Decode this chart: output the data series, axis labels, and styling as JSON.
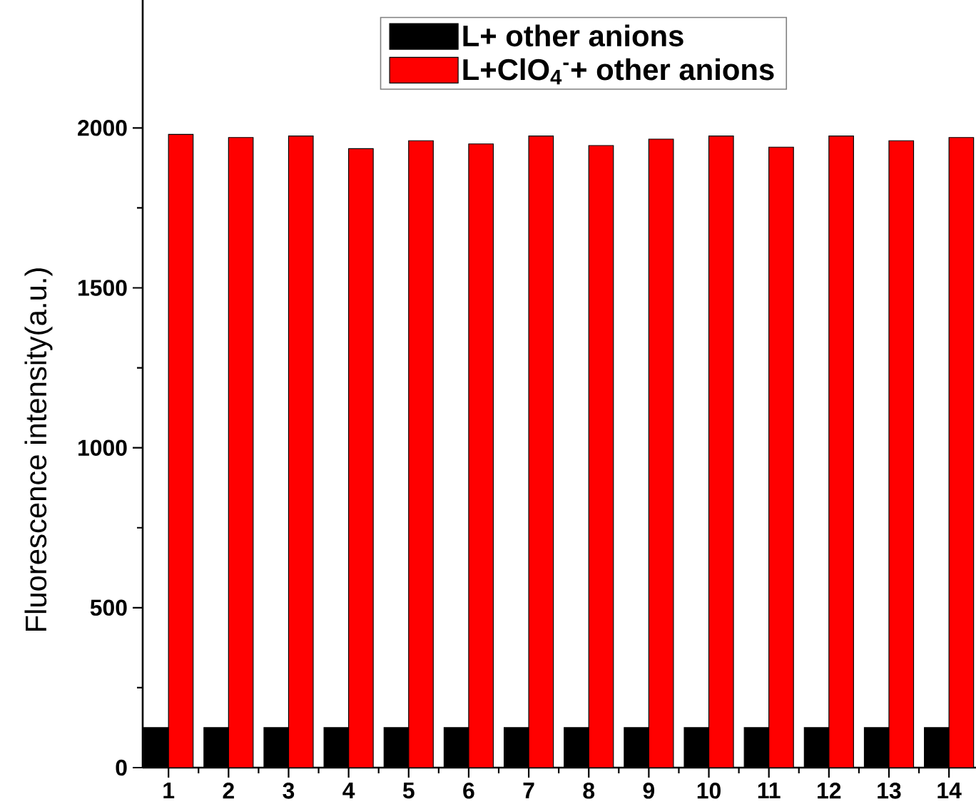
{
  "chart_data": {
    "type": "bar",
    "ylabel": "Fluorescence intensity(a.u.)",
    "categories": [
      "1",
      "2",
      "3",
      "4",
      "5",
      "6",
      "7",
      "8",
      "9",
      "10",
      "11",
      "12",
      "13",
      "14"
    ],
    "series": [
      {
        "name": "L+ other anions",
        "color": "#000000",
        "values": [
          125,
          125,
          125,
          125,
          125,
          125,
          125,
          125,
          125,
          125,
          125,
          125,
          125,
          125
        ]
      },
      {
        "name": "L+ClO$_{4}$$^{-}$+ other anions",
        "color": "#ff0000",
        "values": [
          1980,
          1970,
          1975,
          1935,
          1960,
          1950,
          1975,
          1945,
          1965,
          1975,
          1940,
          1975,
          1960,
          1970
        ]
      }
    ],
    "ylim": [
      0,
      2400
    ],
    "yticks": [
      0,
      500,
      1000,
      1500,
      2000
    ],
    "legend": "top"
  }
}
